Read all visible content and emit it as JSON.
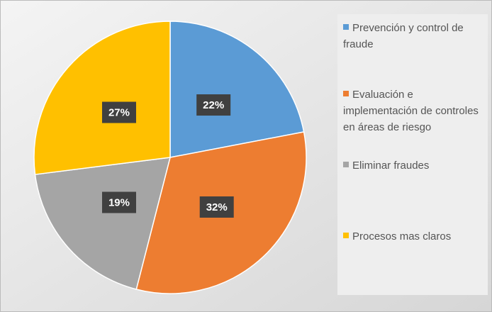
{
  "chart_data": {
    "type": "pie",
    "categories": [
      "Prevención y control de fraude",
      "Evaluación e implementación de controles en áreas de riesgo",
      "Eliminar fraudes",
      "Procesos mas claros"
    ],
    "values": [
      22,
      32,
      19,
      27
    ],
    "value_labels": [
      "22%",
      "32%",
      "19%",
      "27%"
    ],
    "colors": [
      "#5b9bd5",
      "#ed7d31",
      "#a5a5a5",
      "#ffc000"
    ],
    "legend": "right"
  }
}
